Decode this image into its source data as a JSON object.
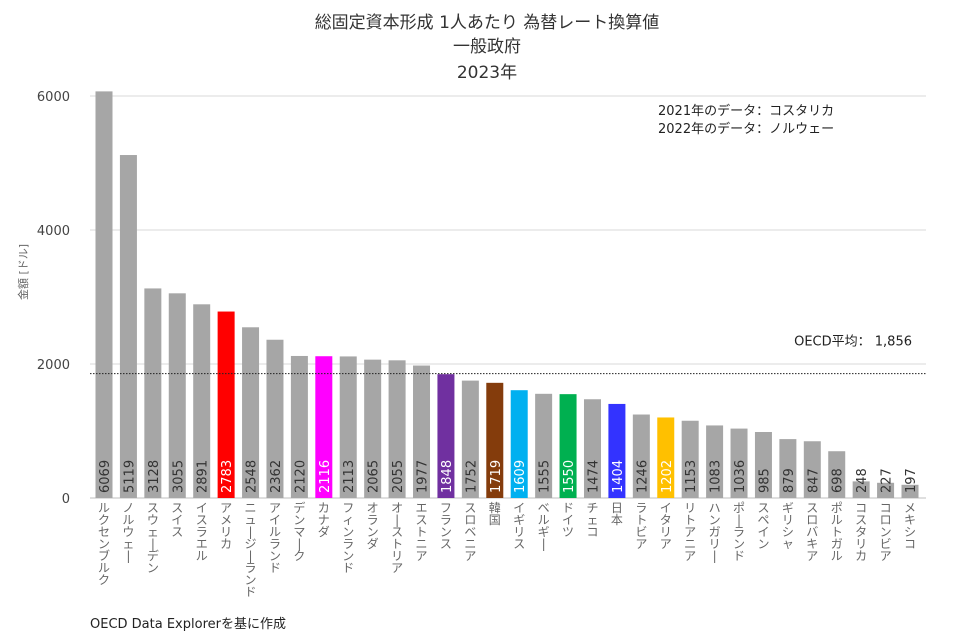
{
  "chart_data": {
    "type": "bar",
    "title": [
      "総固定資本形成 1人あたり 為替レート換算値",
      "一般政府",
      "2023年"
    ],
    "ylabel": "金額 [ドル]",
    "xlabel": "",
    "ylim": [
      0,
      6000
    ],
    "yticks": [
      0,
      2000,
      4000,
      6000
    ],
    "grid": true,
    "categories": [
      "ルクセンブルク",
      "ノルウェー",
      "スウェーデン",
      "スイス",
      "イスラエル",
      "アメリカ",
      "ニュージーランド",
      "アイルランド",
      "デンマーク",
      "カナダ",
      "フィンランド",
      "オランダ",
      "オーストリア",
      "エストニア",
      "フランス",
      "スロベニア",
      "韓国",
      "イギリス",
      "ベルギー",
      "ドイツ",
      "チェコ",
      "日本",
      "ラトビア",
      "イタリア",
      "リトアニア",
      "ハンガリー",
      "ポーランド",
      "スペイン",
      "ギリシャ",
      "スロバキア",
      "ポルトガル",
      "コスタリカ",
      "コロンビア",
      "メキシコ"
    ],
    "values": [
      6069,
      5119,
      3128,
      3055,
      2891,
      2783,
      2548,
      2362,
      2120,
      2116,
      2113,
      2065,
      2055,
      1977,
      1848,
      1752,
      1719,
      1609,
      1555,
      1550,
      1474,
      1404,
      1246,
      1202,
      1153,
      1083,
      1036,
      985,
      879,
      847,
      698,
      248,
      227,
      197
    ],
    "colors": {
      "default": "#a6a6a6",
      "アメリカ": "#ff0000",
      "カナダ": "#ff00ff",
      "フランス": "#7030a0",
      "韓国": "#843c0c",
      "イギリス": "#00b0f0",
      "ドイツ": "#00b050",
      "日本": "#3333ff",
      "イタリア": "#ffc000"
    },
    "reference_line": {
      "label": "OECD平均： 1,856",
      "value": 1856
    },
    "annotations": [
      "2021年のデータ：コスタリカ",
      "2022年のデータ：ノルウェー"
    ],
    "source": "OECD Data Explorerを基に作成"
  }
}
